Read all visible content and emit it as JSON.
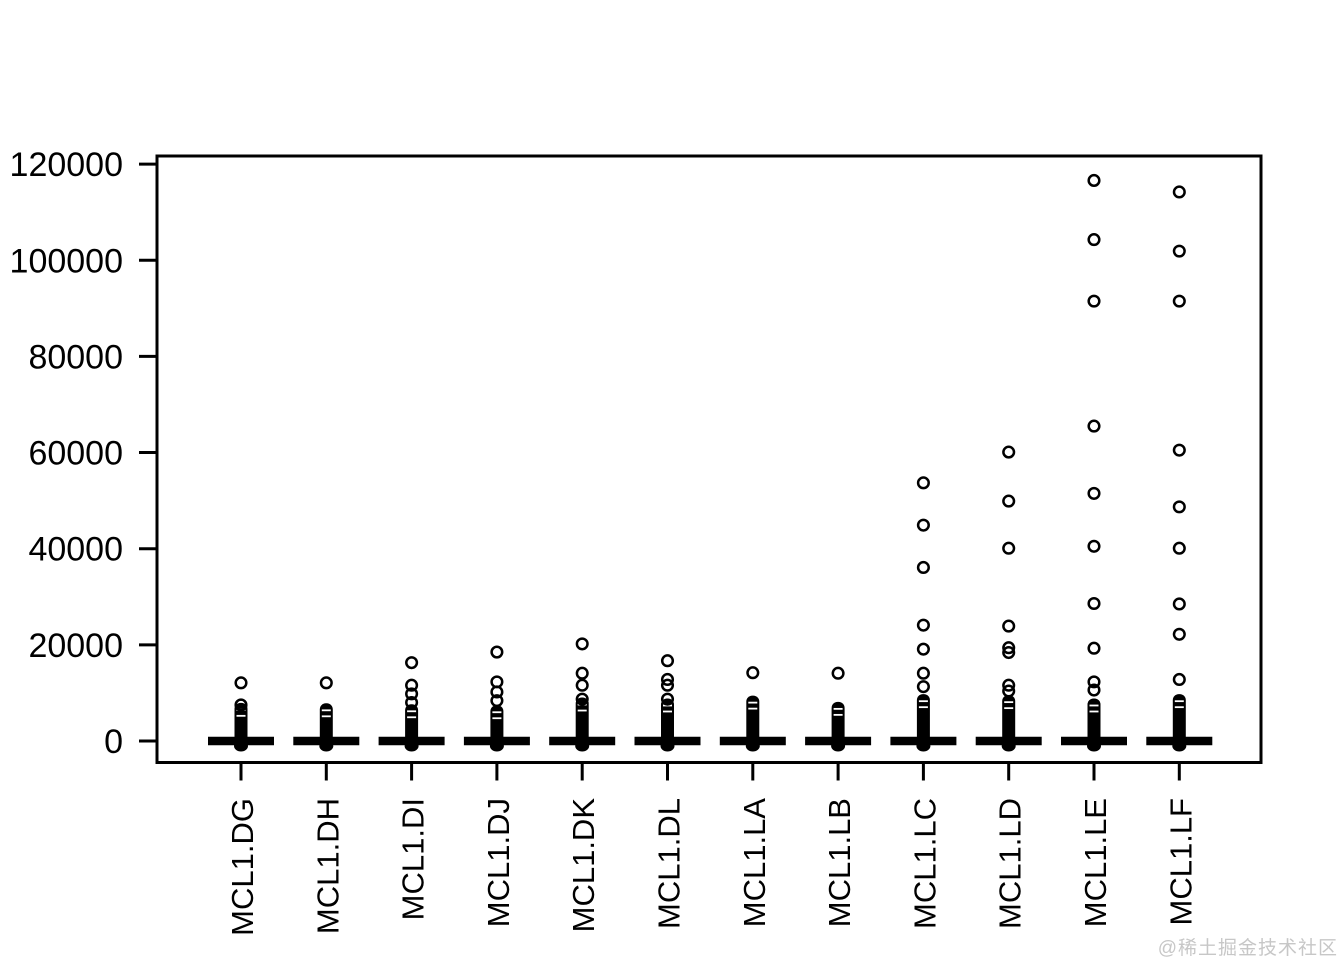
{
  "watermark": "@稀土掘金技术社区",
  "chart_data": {
    "type": "boxplot",
    "title": "",
    "xlabel": "",
    "ylabel": "",
    "ylim": [
      0,
      120000
    ],
    "yticks": [
      0,
      20000,
      40000,
      60000,
      80000,
      100000,
      120000
    ],
    "ytick_labels": [
      "0",
      "20000",
      "40000",
      "60000",
      "80000",
      "100000",
      "120000"
    ],
    "grid": false,
    "legend": null,
    "x_axis_label_rotation": "vertical",
    "box_style": "boxes collapsed near zero (median bar at 0), open-circle outliers stacked above",
    "categories": [
      "MCL1.DG",
      "MCL1.DH",
      "MCL1.DI",
      "MCL1.DJ",
      "MCL1.DK",
      "MCL1.DL",
      "MCL1.LA",
      "MCL1.LB",
      "MCL1.LC",
      "MCL1.LD",
      "MCL1.LE",
      "MCL1.LF"
    ],
    "series": [
      {
        "label": "MCL1.DG",
        "median": 0,
        "dense_outliers_up_to": 6900,
        "outliers": [
          12100,
          7500
        ]
      },
      {
        "label": "MCL1.DH",
        "median": 0,
        "dense_outliers_up_to": 6800,
        "outliers": [
          12100
        ]
      },
      {
        "label": "MCL1.DI",
        "median": 0,
        "dense_outliers_up_to": 6600,
        "outliers": [
          16300,
          11600,
          9800,
          8000
        ]
      },
      {
        "label": "MCL1.DJ",
        "median": 0,
        "dense_outliers_up_to": 6400,
        "outliers": [
          18500,
          12300,
          10200,
          8400
        ]
      },
      {
        "label": "MCL1.DK",
        "median": 0,
        "dense_outliers_up_to": 8000,
        "outliers": [
          20200,
          14100,
          11600,
          8700
        ]
      },
      {
        "label": "MCL1.DL",
        "median": 0,
        "dense_outliers_up_to": 7800,
        "outliers": [
          16700,
          12800,
          11600,
          8700
        ]
      },
      {
        "label": "MCL1.LA",
        "median": 0,
        "dense_outliers_up_to": 8400,
        "outliers": [
          14200
        ]
      },
      {
        "label": "MCL1.LB",
        "median": 0,
        "dense_outliers_up_to": 7100,
        "outliers": [
          14100
        ]
      },
      {
        "label": "MCL1.LC",
        "median": 0,
        "dense_outliers_up_to": 8700,
        "outliers": [
          53700,
          44900,
          36100,
          24100,
          19100,
          14100,
          11300
        ]
      },
      {
        "label": "MCL1.LD",
        "median": 0,
        "dense_outliers_up_to": 8500,
        "outliers": [
          60100,
          49900,
          40100,
          23900,
          19400,
          18400,
          11600,
          10400
        ]
      },
      {
        "label": "MCL1.LE",
        "median": 0,
        "dense_outliers_up_to": 7800,
        "outliers": [
          116600,
          104300,
          91500,
          65500,
          51500,
          40500,
          28600,
          19300,
          12300,
          10600
        ]
      },
      {
        "label": "MCL1.LF",
        "median": 0,
        "dense_outliers_up_to": 8700,
        "outliers": [
          114200,
          101900,
          91500,
          60500,
          48700,
          40100,
          28500,
          22200,
          12800
        ]
      }
    ]
  }
}
